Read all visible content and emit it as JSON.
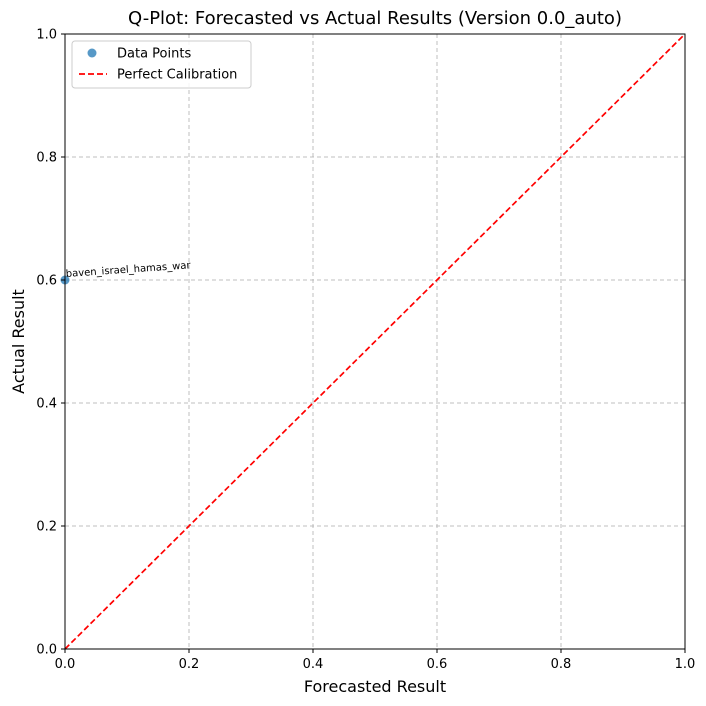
{
  "chart_data": {
    "type": "scatter",
    "title": "Q-Plot: Forecasted vs Actual Results (Version 0.0_auto)",
    "xlabel": "Forecasted Result",
    "ylabel": "Actual Result",
    "xlim": [
      0,
      1
    ],
    "ylim": [
      0,
      1
    ],
    "x_ticks": [
      "0.0",
      "0.2",
      "0.4",
      "0.6",
      "0.8",
      "1.0"
    ],
    "y_ticks": [
      "0.0",
      "0.2",
      "0.4",
      "0.6",
      "0.8",
      "1.0"
    ],
    "grid": true,
    "legend_position": "top-left",
    "series": [
      {
        "name": "Data Points",
        "kind": "scatter",
        "color": "#1f77b4",
        "points": [
          {
            "x": 0.0,
            "y": 0.6,
            "label": "baven_israel_hamas_war"
          }
        ]
      },
      {
        "name": "Perfect Calibration",
        "kind": "line",
        "style": "dashed",
        "color": "#ff0000",
        "x": [
          0,
          1
        ],
        "y": [
          0,
          1
        ]
      }
    ]
  }
}
